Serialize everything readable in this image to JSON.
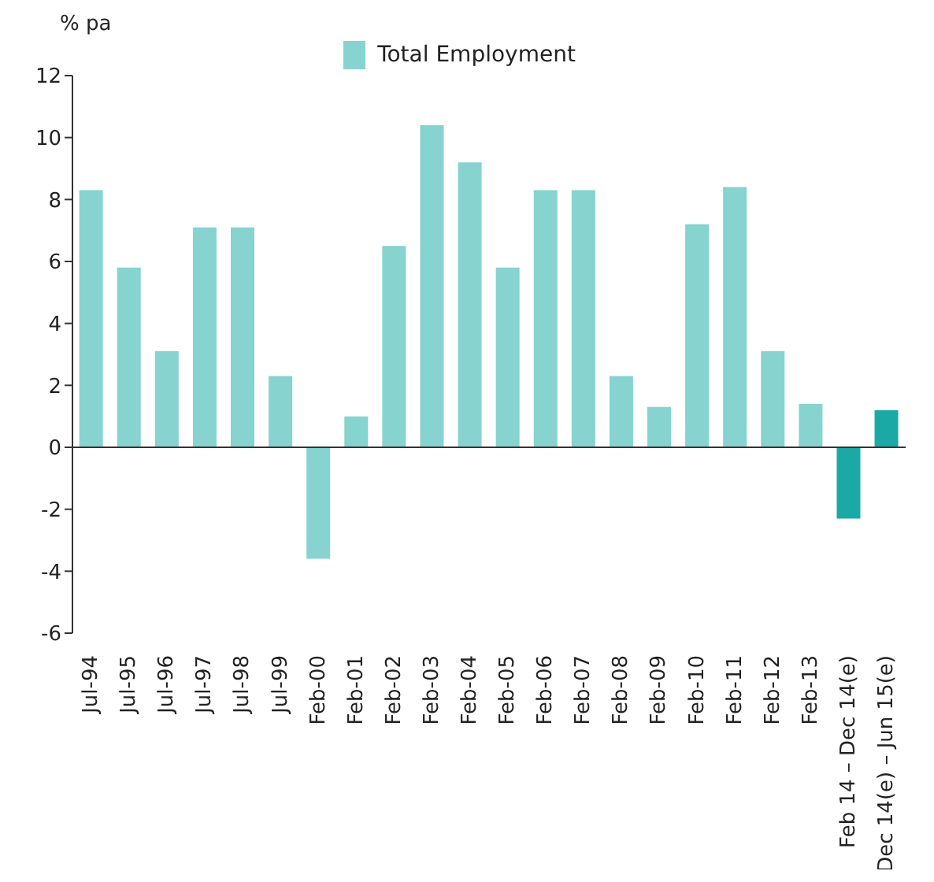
{
  "chart_data": {
    "type": "bar",
    "ylabel": "% pa",
    "categories": [
      "Jul-94",
      "Jul-95",
      "Jul-96",
      "Jul-97",
      "Jul-98",
      "Jul-99",
      "Feb-00",
      "Feb-01",
      "Feb-02",
      "Feb-03",
      "Feb-04",
      "Feb-05",
      "Feb-06",
      "Feb-07",
      "Feb-08",
      "Feb-09",
      "Feb-10",
      "Feb-11",
      "Feb-12",
      "Feb-13",
      "Feb 14 – Dec 14(e)",
      "Dec 14(e) – Jun 15(e)"
    ],
    "series": [
      {
        "name": "Total Employment",
        "color": "#86d3d0",
        "values": [
          8.3,
          5.8,
          3.1,
          7.1,
          7.1,
          2.3,
          -3.6,
          1.0,
          6.5,
          10.4,
          9.2,
          5.8,
          8.3,
          8.3,
          2.3,
          1.3,
          7.2,
          8.4,
          3.1,
          1.4,
          -2.3,
          1.2
        ],
        "colors": [
          "#86d3d0",
          "#86d3d0",
          "#86d3d0",
          "#86d3d0",
          "#86d3d0",
          "#86d3d0",
          "#86d3d0",
          "#86d3d0",
          "#86d3d0",
          "#86d3d0",
          "#86d3d0",
          "#86d3d0",
          "#86d3d0",
          "#86d3d0",
          "#86d3d0",
          "#86d3d0",
          "#86d3d0",
          "#86d3d0",
          "#86d3d0",
          "#86d3d0",
          "#1aa9a5",
          "#1aa9a5"
        ]
      }
    ],
    "ylim": [
      -6,
      12
    ],
    "yticks": [
      -6,
      -4,
      -2,
      0,
      2,
      4,
      6,
      8,
      10,
      12
    ],
    "legend": "top"
  }
}
